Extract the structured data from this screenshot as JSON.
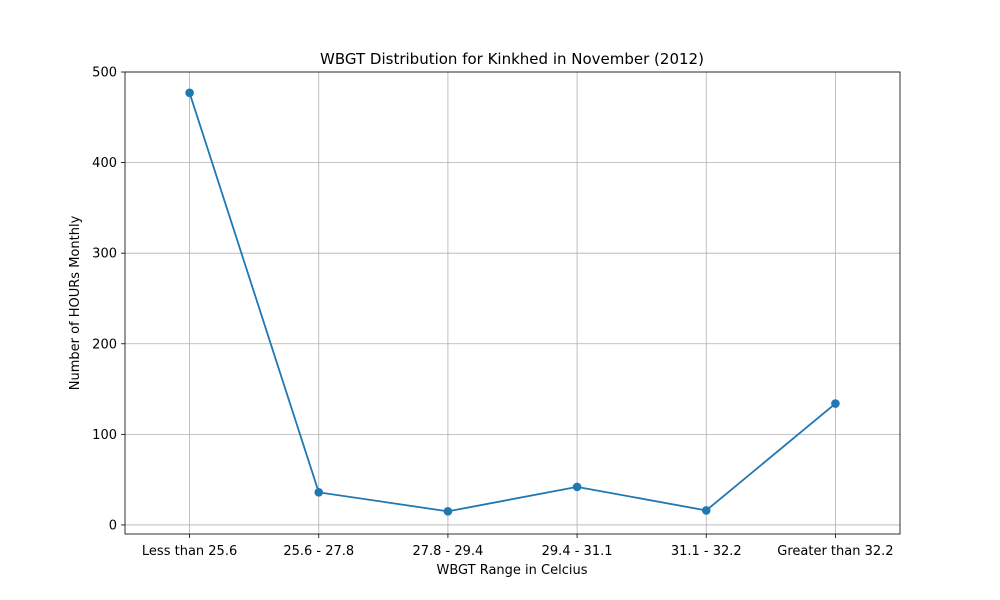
{
  "chart_data": {
    "type": "line",
    "title": "WBGT Distribution for Kinkhed in November (2012)",
    "xlabel": "WBGT Range in Celcius",
    "ylabel": "Number of HOURs Monthly",
    "categories": [
      "Less than 25.6",
      "25.6 - 27.8",
      "27.8 - 29.4",
      "29.4 - 31.1",
      "31.1 - 32.2",
      "Greater than 32.2"
    ],
    "series": [
      {
        "values": [
          477,
          36,
          15,
          42,
          16,
          134
        ]
      }
    ],
    "ylim": [
      -10,
      500
    ],
    "yticks": [
      0,
      100,
      200,
      300,
      400,
      500
    ],
    "ytick_labels": [
      "0",
      "100",
      "200",
      "300",
      "400",
      "500"
    ],
    "grid": true,
    "legend": false,
    "colors": {
      "line": "#1f77b4",
      "marker": "#1f77b4"
    }
  }
}
